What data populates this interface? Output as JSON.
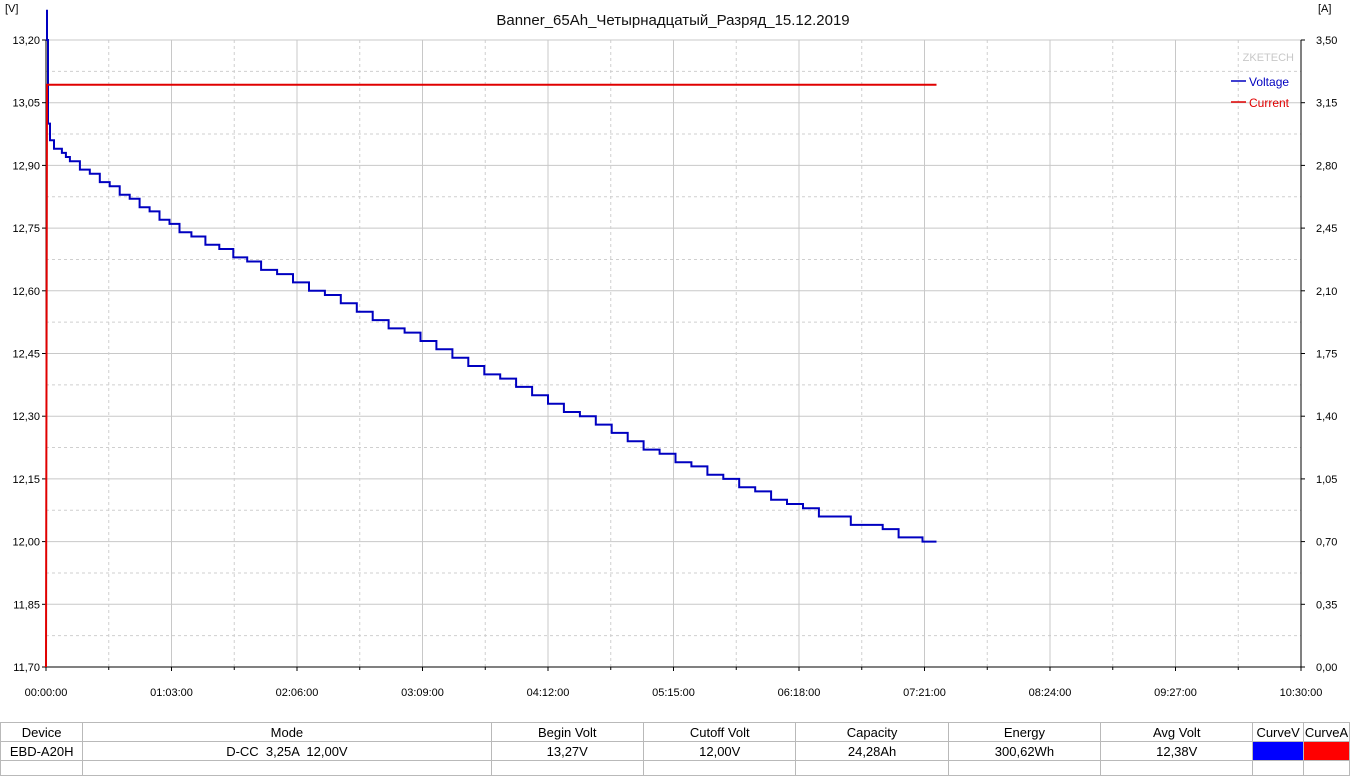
{
  "chart_data": {
    "type": "line",
    "title": "Banner_65Ah_Четырнадцатый_Разряд_15.12.2019",
    "watermark": "ZKETECH",
    "y_left_unit": "[V]",
    "y_right_unit": "[A]",
    "y_left_range": [
      11.7,
      13.2
    ],
    "y_right_range": [
      0.0,
      3.5
    ],
    "x_range_minutes": [
      0,
      630
    ],
    "y_left_ticks": [
      "13,20",
      "13,05",
      "12,90",
      "12,75",
      "12,60",
      "12,45",
      "12,30",
      "12,15",
      "12,00",
      "11,85",
      "11,70"
    ],
    "y_right_ticks": [
      "3,50",
      "3,15",
      "2,80",
      "2,45",
      "2,10",
      "1,75",
      "1,40",
      "1,05",
      "0,70",
      "0,35",
      "0,00"
    ],
    "x_ticks": [
      "00:00:00",
      "01:03:00",
      "02:06:00",
      "03:09:00",
      "04:12:00",
      "05:15:00",
      "06:18:00",
      "07:21:00",
      "08:24:00",
      "09:27:00",
      "10:30:00"
    ],
    "grid": true,
    "legend_position": "top-right",
    "series": [
      {
        "name": "Voltage",
        "axis": "left",
        "color": "#0000c0",
        "x_minutes": [
          0,
          0.5,
          1,
          2,
          4,
          8,
          10,
          12,
          17,
          22,
          27,
          32,
          37,
          42,
          47,
          52,
          57,
          62,
          67,
          73,
          80,
          87,
          94,
          101,
          108,
          116,
          124,
          132,
          140,
          148,
          156,
          164,
          172,
          180,
          188,
          196,
          204,
          212,
          220,
          228,
          236,
          244,
          252,
          260,
          268,
          276,
          284,
          292,
          300,
          308,
          316,
          324,
          332,
          340,
          348,
          356,
          364,
          372,
          380,
          388,
          396,
          404,
          412,
          420,
          428,
          436,
          440,
          447
        ],
        "values": [
          13.27,
          13.2,
          13.0,
          12.96,
          12.94,
          12.93,
          12.92,
          12.91,
          12.89,
          12.88,
          12.86,
          12.85,
          12.83,
          12.82,
          12.8,
          12.79,
          12.77,
          12.76,
          12.74,
          12.73,
          12.71,
          12.7,
          12.68,
          12.67,
          12.65,
          12.64,
          12.62,
          12.6,
          12.59,
          12.57,
          12.55,
          12.53,
          12.51,
          12.5,
          12.48,
          12.46,
          12.44,
          12.42,
          12.4,
          12.39,
          12.37,
          12.35,
          12.33,
          12.31,
          12.3,
          12.28,
          12.26,
          12.24,
          12.22,
          12.21,
          12.19,
          12.18,
          12.16,
          12.15,
          12.13,
          12.12,
          12.1,
          12.09,
          12.08,
          12.06,
          12.06,
          12.04,
          12.04,
          12.03,
          12.01,
          12.01,
          12.0,
          12.0
        ]
      },
      {
        "name": "Current",
        "axis": "right",
        "color": "#e00000",
        "x_minutes": [
          0,
          0,
          0.5,
          1,
          447
        ],
        "values": [
          0.0,
          0.0,
          3.25,
          3.25,
          3.25
        ]
      }
    ]
  },
  "info_table": {
    "headers": [
      "Device",
      "Mode",
      "Begin Volt",
      "Cutoff Volt",
      "Capacity",
      "Energy",
      "Avg Volt",
      "CurveV",
      "CurveA"
    ],
    "row": [
      "EBD-A20H",
      "D-CC  3,25A  12,00V",
      "13,27V",
      "12,00V",
      "24,28Ah",
      "300,62Wh",
      "12,38V"
    ],
    "curve_colors": [
      "#0000ff",
      "#ff0000"
    ]
  }
}
